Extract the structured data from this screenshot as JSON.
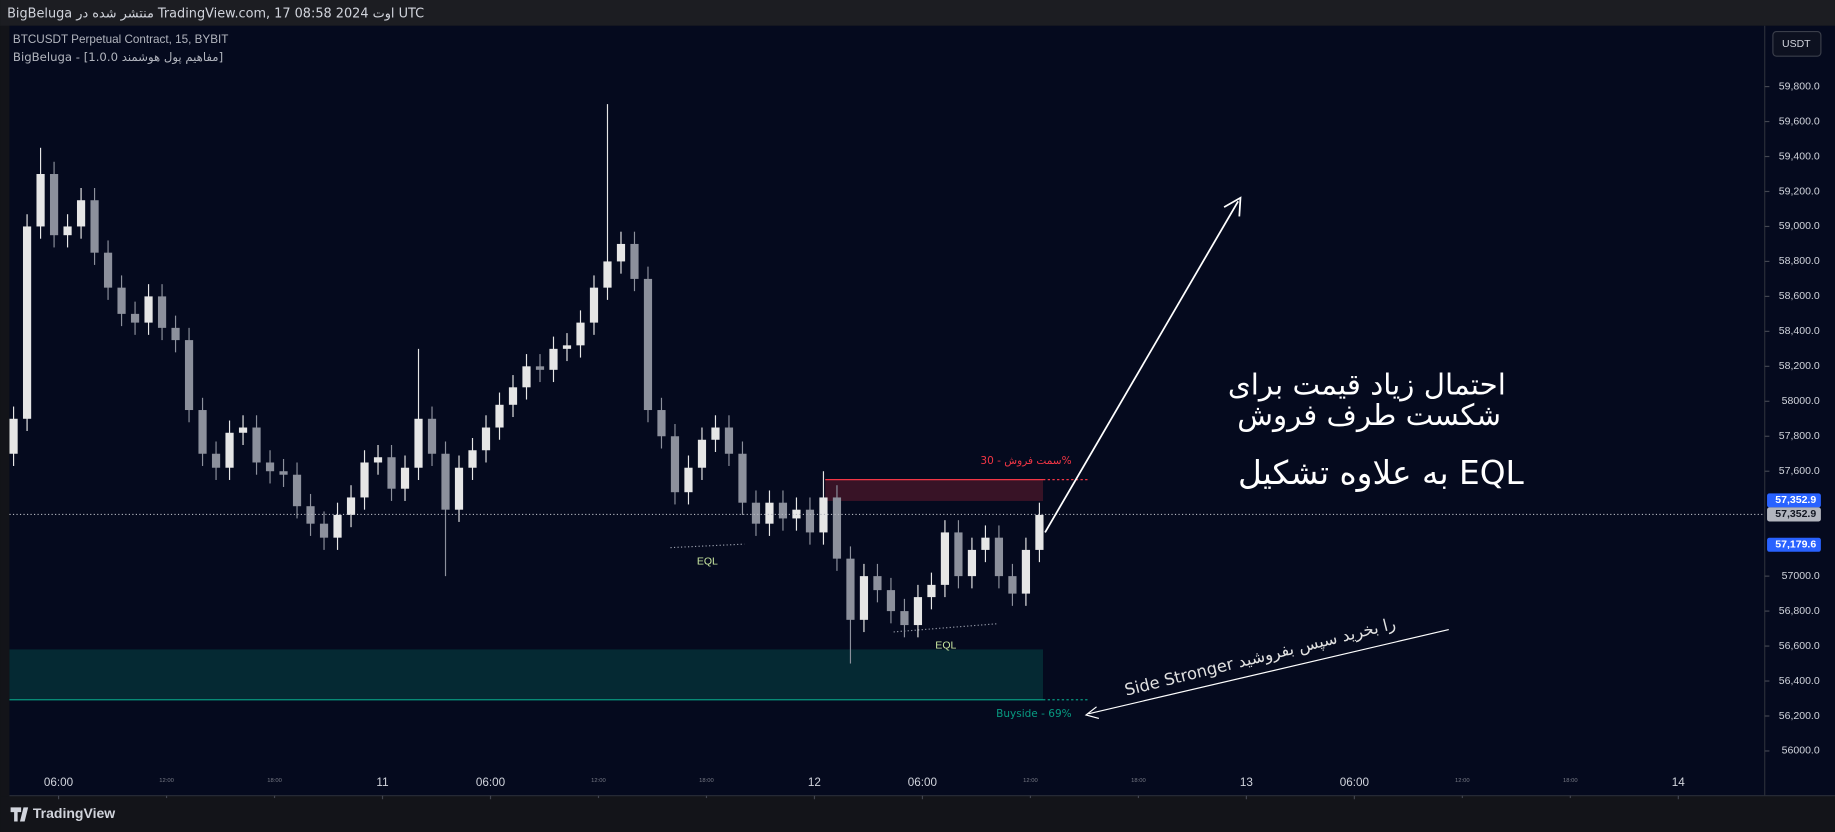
{
  "header": {
    "published": "BigBeluga منتشر شده در TradingView.com, 17 اوت 2024 08:58 UTC"
  },
  "legend": {
    "symbol": "BTCUSDT Perpetual Contract, 15, BYBIT",
    "indicator": "BigBeluga - [مفاهیم پول هوشمند 1.0.0]"
  },
  "currency_button": "USDT",
  "footer": {
    "brand": "TradingView"
  },
  "chart_data": {
    "type": "candlestick",
    "up_color": "#e6e6e6",
    "down_color": "#8c909c",
    "grid": false,
    "xlim": [
      -2.73,
      94.8
    ],
    "ylim": [
      55744,
      60148
    ],
    "xticks": [
      {
        "value": 0,
        "label": "06:00"
      },
      11,
      {
        "value": 24,
        "label": "06:00"
      },
      12,
      {
        "value": 48,
        "label": "06:00"
      },
      13,
      {
        "value": 72,
        "label": "06:00"
      },
      14
    ],
    "xtick_positions": [
      0,
      18,
      24,
      42,
      48,
      66,
      72,
      90
    ],
    "xticks_minor": [
      {
        "value": 6,
        "label": "12:00"
      },
      {
        "value": 12,
        "label": "18:00"
      },
      {
        "value": 30,
        "label": "12:00"
      },
      {
        "value": 36,
        "label": "18:00"
      },
      {
        "value": 54,
        "label": "12:00"
      },
      {
        "value": 60,
        "label": "18:00"
      },
      {
        "value": 78,
        "label": "12:00"
      },
      {
        "value": 84,
        "label": "18:00"
      }
    ],
    "yticks": [
      {
        "value": 56000,
        "label": "56000.0"
      },
      {
        "value": 56200,
        "label": "56,200.0"
      },
      {
        "value": 56400,
        "label": "56,400.0"
      },
      {
        "value": 56600,
        "label": "56,600.0"
      },
      {
        "value": 56800,
        "label": "56,800.0"
      },
      {
        "value": 57000,
        "label": "57000.0"
      },
      {
        "value": 57600,
        "label": "57,600.0"
      },
      {
        "value": 57800,
        "label": "57,800.0"
      },
      {
        "value": 58000,
        "label": "58000.0"
      },
      {
        "value": 58200,
        "label": "58,200.0"
      },
      {
        "value": 58400,
        "label": "58,400.0"
      },
      {
        "value": 58600,
        "label": "58,600.0"
      },
      {
        "value": 58800,
        "label": "58,800.0"
      },
      {
        "value": 59000,
        "label": "59,000.0"
      },
      {
        "value": 59200,
        "label": "59,200.0"
      },
      {
        "value": 59400,
        "label": "59,400.0"
      },
      {
        "value": 59600,
        "label": "59,600.0"
      },
      {
        "value": 59800,
        "label": "59,800.0"
      }
    ],
    "x": [
      -2.5,
      -1.75,
      -1,
      -0.25,
      0.5,
      1.25,
      2,
      2.75,
      3.5,
      4.25,
      5,
      5.75,
      6.5,
      7.25,
      8,
      8.75,
      9.5,
      10.25,
      11,
      11.75,
      12.5,
      13.25,
      14,
      14.75,
      15.5,
      16.25,
      17,
      17.75,
      18.5,
      19.25,
      20,
      20.75,
      21.5,
      22.25,
      23,
      23.75,
      24.5,
      25.25,
      26,
      26.75,
      27.5,
      28.25,
      29,
      29.75,
      30.5,
      31.25,
      32,
      32.75,
      33.5,
      34.25,
      35,
      35.75,
      36.5,
      37.25,
      38,
      38.75,
      39.5,
      40.25,
      41,
      41.75,
      42.5,
      43.25,
      44,
      44.75,
      45.5,
      46.25,
      47,
      47.75,
      48.5,
      49.25,
      50,
      50.75,
      51.5,
      52.25,
      53,
      53.75,
      54.5
    ],
    "open": [
      57700,
      57900,
      59000,
      59300,
      58950,
      59000,
      59150,
      58850,
      58650,
      58500,
      58450,
      58600,
      58420,
      58350,
      57950,
      57700,
      57620,
      57820,
      57850,
      57650,
      57600,
      57580,
      57400,
      57300,
      57220,
      57350,
      57450,
      57650,
      57680,
      57500,
      57620,
      57900,
      57700,
      57380,
      57620,
      57720,
      57850,
      57980,
      58080,
      58200,
      58180,
      58300,
      58320,
      58450,
      58650,
      58800,
      58900,
      58700,
      57950,
      57800,
      57480,
      57620,
      57780,
      57850,
      57700,
      57420,
      57300,
      57420,
      57330,
      57380,
      57250,
      57450,
      57100,
      56750,
      57000,
      56920,
      56800,
      56720,
      56880,
      56950,
      57250,
      57000,
      57150,
      57220,
      57000,
      56900,
      57150
    ],
    "high": [
      57970,
      59070,
      59450,
      59370,
      59070,
      59220,
      59220,
      58920,
      58720,
      58570,
      58670,
      58670,
      58490,
      58420,
      58020,
      57770,
      57890,
      57920,
      57920,
      57720,
      57670,
      57650,
      57470,
      57370,
      57420,
      57520,
      57720,
      57750,
      57750,
      57690,
      58300,
      57970,
      57770,
      57690,
      57790,
      57920,
      58050,
      58150,
      58270,
      58270,
      58370,
      58390,
      58520,
      58720,
      59700,
      58970,
      58970,
      58770,
      58020,
      57870,
      57690,
      57850,
      57920,
      57920,
      57770,
      57490,
      57490,
      57490,
      57450,
      57450,
      57600,
      57520,
      57170,
      57070,
      57070,
      56990,
      56870,
      56950,
      57020,
      57320,
      57320,
      57220,
      57290,
      57290,
      57070,
      57220,
      57420
    ],
    "low": [
      57630,
      57830,
      58930,
      58880,
      58880,
      58930,
      58780,
      58580,
      58430,
      58380,
      58380,
      58350,
      58280,
      57880,
      57630,
      57550,
      57550,
      57750,
      57580,
      57530,
      57510,
      57330,
      57230,
      57150,
      57150,
      57280,
      57380,
      57580,
      57430,
      57430,
      57550,
      57630,
      57000,
      57310,
      57550,
      57650,
      57780,
      57910,
      58010,
      58110,
      58110,
      58230,
      58250,
      58380,
      58580,
      58730,
      58630,
      57880,
      57730,
      57410,
      57410,
      57550,
      57710,
      57630,
      57350,
      57230,
      57230,
      57260,
      57260,
      57180,
      57180,
      57030,
      56500,
      56680,
      56850,
      56730,
      56650,
      56650,
      56810,
      56880,
      56930,
      56930,
      57080,
      56930,
      56830,
      56830,
      57080
    ],
    "close": [
      57900,
      59000,
      59300,
      58950,
      59000,
      59150,
      58850,
      58650,
      58500,
      58450,
      58600,
      58420,
      58350,
      57950,
      57700,
      57620,
      57820,
      57850,
      57650,
      57600,
      57580,
      57400,
      57300,
      57220,
      57350,
      57450,
      57650,
      57680,
      57500,
      57620,
      57900,
      57700,
      57380,
      57620,
      57720,
      57850,
      57980,
      58080,
      58200,
      58180,
      58300,
      58320,
      58450,
      58650,
      58800,
      58900,
      58700,
      57950,
      57800,
      57480,
      57620,
      57780,
      57850,
      57700,
      57420,
      57300,
      57420,
      57330,
      57380,
      57250,
      57450,
      57100,
      56750,
      57000,
      56920,
      56800,
      56720,
      56880,
      56950,
      57250,
      57000,
      57150,
      57220,
      57000,
      56900,
      57150,
      57350
    ],
    "zones": [
      {
        "label": "سمت فروش - 30%",
        "x": [
          42.6,
          54.7
        ],
        "top": 57552,
        "bottom": 57430,
        "line_at": "top",
        "line_end": 57.2,
        "color": "#f23645"
      },
      {
        "label": "Buyside - 69%",
        "x": [
          -2.73,
          54.7
        ],
        "top": 56581,
        "bottom": 56293,
        "line_at": "bottom",
        "line_end": 57.2,
        "color": "#089981"
      }
    ],
    "eql": [
      {
        "label": "EQL",
        "x": [
          34.0,
          38.1
        ],
        "y": [
          57163,
          57183
        ]
      },
      {
        "label": "EQL",
        "x": [
          46.4,
          52.2
        ],
        "y": [
          56681,
          56728
        ]
      }
    ],
    "last_price": 57352.9,
    "price_tags": [
      {
        "value": 57352.9,
        "label": "57,352.9",
        "color": "#2962ff"
      },
      {
        "value": 57352.9,
        "label": "57,352.9",
        "color": "#b2b5be"
      },
      {
        "value": 57179.6,
        "label": "57,179.6",
        "color": "#2962ff"
      }
    ],
    "annotations": {
      "line1": "احتمال زیاد قیمت برای",
      "line2": "شکست طرف فروش",
      "line3": "به علاوه تشکیل EQL",
      "side_note": "Side Stronger را بخرید سپس بفروشید"
    }
  }
}
